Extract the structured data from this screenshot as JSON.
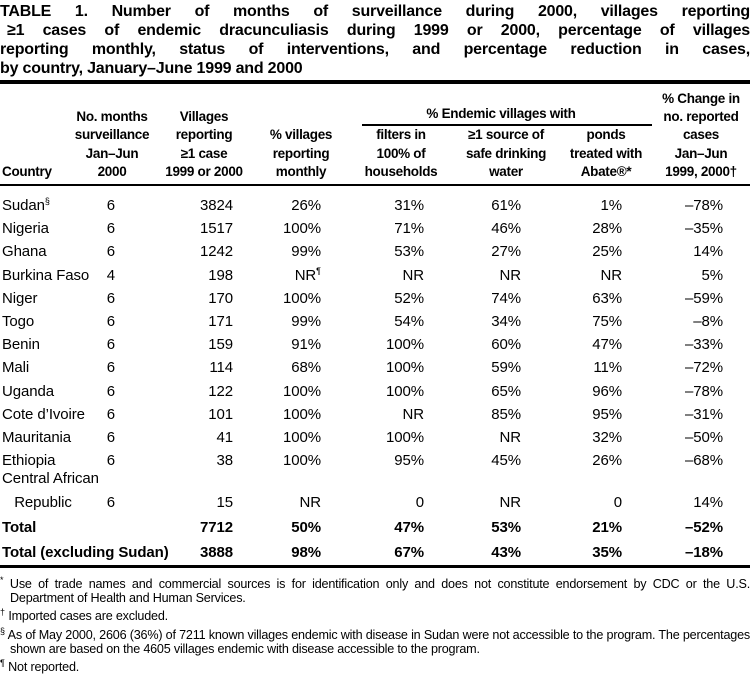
{
  "title": {
    "lines": [
      "TABLE 1. Number of months of surveillance during 2000, villages reporting",
      "≥1 cases of endemic dracunculiasis during 1999 or 2000, percentage of villages",
      "reporting monthly, status of interventions, and percentage reduction in cases,",
      "by country, January–June 1999 and 2000"
    ]
  },
  "header": {
    "country": "Country",
    "months": "No. months\nsurveillance\nJan–Jun\n2000",
    "villages": "Villages\nreporting\n≥1 case\n1999 or 2000",
    "monthly": "% villages\nreporting\nmonthly",
    "endemic_group": "% Endemic villages with",
    "filters": "filters in\n100% of\nhouseholds",
    "water": "≥1 source of\nsafe drinking\nwater",
    "ponds": "ponds\ntreated with\nAbate®*",
    "change": "% Change in\nno. reported\ncases\nJan–Jun\n1999, 2000†"
  },
  "table": {
    "rows": [
      {
        "country": "Sudan",
        "country_sup": "§",
        "months": "6",
        "villages": "3824",
        "monthly": "26%",
        "monthly_sup": "",
        "filters": "31%",
        "water": "61%",
        "ponds": "1%",
        "change": "–78%"
      },
      {
        "country": "Nigeria",
        "country_sup": "",
        "months": "6",
        "villages": "1517",
        "monthly": "100%",
        "monthly_sup": "",
        "filters": "71%",
        "water": "46%",
        "ponds": "28%",
        "change": "–35%"
      },
      {
        "country": "Ghana",
        "country_sup": "",
        "months": "6",
        "villages": "1242",
        "monthly": "99%",
        "monthly_sup": "",
        "filters": "53%",
        "water": "27%",
        "ponds": "25%",
        "change": "14%"
      },
      {
        "country": "Burkina Faso",
        "country_sup": "",
        "months": "4",
        "villages": "198",
        "monthly": "NR",
        "monthly_sup": "¶",
        "filters": "NR",
        "water": "NR",
        "ponds": "NR",
        "change": "5%"
      },
      {
        "country": "Niger",
        "country_sup": "",
        "months": "6",
        "villages": "170",
        "monthly": "100%",
        "monthly_sup": "",
        "filters": "52%",
        "water": "74%",
        "ponds": "63%",
        "change": "–59%"
      },
      {
        "country": "Togo",
        "country_sup": "",
        "months": "6",
        "villages": "171",
        "monthly": "99%",
        "monthly_sup": "",
        "filters": "54%",
        "water": "34%",
        "ponds": "75%",
        "change": "–8%"
      },
      {
        "country": "Benin",
        "country_sup": "",
        "months": "6",
        "villages": "159",
        "monthly": "91%",
        "monthly_sup": "",
        "filters": "100%",
        "water": "60%",
        "ponds": "47%",
        "change": "–33%"
      },
      {
        "country": "Mali",
        "country_sup": "",
        "months": "6",
        "villages": "114",
        "monthly": "68%",
        "monthly_sup": "",
        "filters": "100%",
        "water": "59%",
        "ponds": "11%",
        "change": "–72%"
      },
      {
        "country": "Uganda",
        "country_sup": "",
        "months": "6",
        "villages": "122",
        "monthly": "100%",
        "monthly_sup": "",
        "filters": "100%",
        "water": "65%",
        "ponds": "96%",
        "change": "–78%"
      },
      {
        "country": "Cote d’Ivoire",
        "country_sup": "",
        "months": "6",
        "villages": "101",
        "monthly": "100%",
        "monthly_sup": "",
        "filters": "NR",
        "water": "85%",
        "ponds": "95%",
        "change": "–31%"
      },
      {
        "country": "Mauritania",
        "country_sup": "",
        "months": "6",
        "villages": "41",
        "monthly": "100%",
        "monthly_sup": "",
        "filters": "100%",
        "water": "NR",
        "ponds": "32%",
        "change": "–50%"
      },
      {
        "country": "Ethiopia",
        "country_sup": "",
        "months": "6",
        "villages": "38",
        "monthly": "100%",
        "monthly_sup": "",
        "filters": "95%",
        "water": "45%",
        "ponds": "26%",
        "change": "–68%"
      },
      {
        "country": "Central African\n   Republic",
        "country_sup": "",
        "months": "6",
        "villages": "15",
        "monthly": "NR",
        "monthly_sup": "",
        "filters": "0",
        "water": "NR",
        "ponds": "0",
        "change": "14%"
      }
    ],
    "totals": [
      {
        "country": "Total",
        "country_sup": "",
        "months": "",
        "villages": "7712",
        "monthly": "50%",
        "monthly_sup": "",
        "filters": "47%",
        "water": "53%",
        "ponds": "21%",
        "change": "–52%"
      },
      {
        "country": "Total (excluding Sudan)",
        "country_sup": "",
        "months": "",
        "villages": "3888",
        "monthly": "98%",
        "monthly_sup": "",
        "filters": "67%",
        "water": "43%",
        "ponds": "35%",
        "change": "–18%"
      }
    ]
  },
  "footnotes": [
    {
      "marker": "*",
      "text": "Use of trade names and commercial sources is for identification only and does not constitute endorsement by CDC or the U.S. Department of Health and Human Services."
    },
    {
      "marker": "†",
      "text": "Imported cases are excluded."
    },
    {
      "marker": "§",
      "text": "As of May 2000, 2606 (36%) of 7211 known villages endemic with disease in Sudan were not accessible to the program. The percentages shown are based on the 4605 villages endemic with disease accessible to the program."
    },
    {
      "marker": "¶",
      "text": "Not reported."
    }
  ],
  "colors": {
    "text": "#000000",
    "background": "#ffffff",
    "rule": "#000000"
  }
}
